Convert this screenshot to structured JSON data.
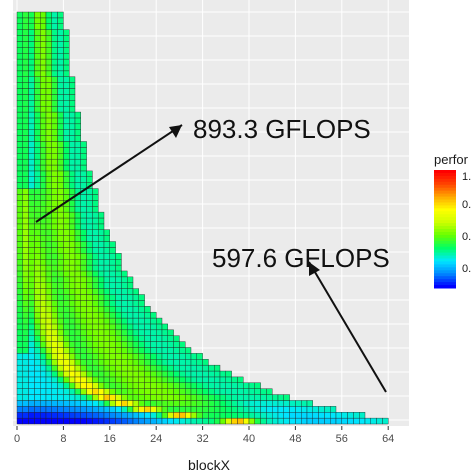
{
  "chart_data": {
    "type": "heatmap",
    "xlabel": "blockX",
    "ylabel": "",
    "xlim": [
      0,
      64
    ],
    "x_ticks": [
      "0",
      "8",
      "16",
      "24",
      "32",
      "40",
      "48",
      "56",
      "64"
    ],
    "y_ticks": [],
    "grid": true,
    "legend": {
      "title": "perfor",
      "labels": [
        "1.",
        "0.",
        "0.",
        "0."
      ],
      "placement": "right",
      "colormap": [
        "#0000ff",
        "#0088ff",
        "#00e8ff",
        "#00ff66",
        "#66ff00",
        "#ccff00",
        "#ffff00",
        "#ffaa00",
        "#ff4400",
        "#ff0000"
      ]
    },
    "annotations": [
      {
        "text": "893.3 GFLOPS",
        "points_to": {
          "x": 4,
          "y": "top of dense region"
        }
      },
      {
        "text": "597.6 GFLOPS",
        "points_to": {
          "x": 64,
          "y": "bottom-right corner"
        }
      }
    ]
  }
}
